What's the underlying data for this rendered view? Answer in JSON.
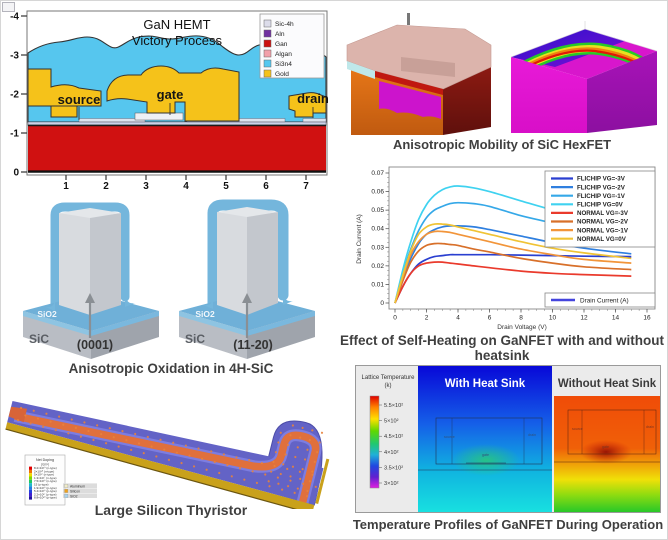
{
  "page": {
    "background": "#ffffff"
  },
  "panels": {
    "gan_hemt": {
      "title_line1": "GaN HEMT",
      "title_line2": "Victory Process",
      "labels": {
        "source": "source",
        "gate": "gate",
        "drain": "drain"
      },
      "y_ticks": [
        "-4",
        "-3",
        "-2",
        "-1",
        "0"
      ],
      "x_ticks": [
        "1",
        "2",
        "3",
        "4",
        "5",
        "6",
        "7"
      ],
      "legend": [
        {
          "label": "Sic-4h",
          "color": "#dcdcea"
        },
        {
          "label": "Aln",
          "color": "#7030a0"
        },
        {
          "label": "Gan",
          "color": "#cc1111"
        },
        {
          "label": "Algan",
          "color": "#f2a0aa"
        },
        {
          "label": "Si3n4",
          "color": "#55c8f0"
        },
        {
          "label": "Gold",
          "color": "#f5c21a"
        }
      ],
      "material_colors": {
        "gan_red": "#d01111",
        "nitride_cyan": "#56c6ee",
        "gold": "#f5c21a",
        "substrate_strip": "#ccd2e8"
      }
    },
    "hexfet": {
      "caption": "Anisotropic Mobility of SiC HexFET"
    },
    "self_heating": {
      "caption": "Effect of Self-Heating on GaNFET with and without heatsink"
    },
    "oxidation": {
      "caption": "Anisotropic Oxidation in 4H-SiC",
      "left": {
        "sio2": "SiO2",
        "sic": "SiC",
        "orientation": "(0001)"
      },
      "right": {
        "sio2": "SiO2",
        "sic": "SiC",
        "orientation": "(11-20)"
      }
    },
    "thyristor": {
      "caption": "Large Silicon Thyristor",
      "doping_legend": {
        "title": "Net Doping",
        "unit": "(/cm³)",
        "rows": [
          "8.2×10¹⁹ (n-type)",
          "2×10¹⁸ (n-type)",
          "5×10¹⁷ (n-type)",
          "1.3×10¹⁷ (n-type)",
          "7.5×10¹⁶ (n-type)",
          "15 (p-type)",
          "1.9×10¹⁶ (p-type)",
          "5.4×10¹⁶ (p-type)",
          "2.2×10¹⁷ (p-type)",
          "8.8×10¹⁸ (p-type)"
        ]
      },
      "materials": [
        {
          "label": "Aluminum",
          "color": "#f0ecc8"
        },
        {
          "label": "Silicon",
          "color": "#eda21d"
        },
        {
          "label": "SiO2",
          "color": "#a6d3ee"
        }
      ]
    },
    "temperature": {
      "caption": "Temperature Profiles of GaNFET During Operation",
      "left_title": "With Heat Sink",
      "right_title": "Without Heat Sink",
      "colorbar_title": "Lattice Temperature",
      "colorbar_unit": "(k)",
      "colorbar_ticks": [
        "5.5×10²",
        "5×10²",
        "4.5×10²",
        "4×10²",
        "3.5×10²",
        "3×10²"
      ],
      "annotations": {
        "source": "source",
        "gate": "gate",
        "drain": "drain"
      }
    }
  },
  "chart_data": {
    "type": "line",
    "title": "",
    "xlabel": "Drain Voltage (V)",
    "ylabel": "Drain Current (A)",
    "xlim": [
      0,
      16
    ],
    "ylim": [
      0,
      0.07
    ],
    "x_ticks": [
      0,
      2,
      4,
      6,
      8,
      10,
      12,
      14,
      16
    ],
    "y_ticks": [
      0,
      0.01,
      0.02,
      0.03,
      0.04,
      0.05,
      0.06,
      0.07
    ],
    "grid": false,
    "legend_position": "top-right",
    "x": [
      0,
      0.5,
      1,
      1.5,
      2,
      2.5,
      3,
      3.5,
      4,
      5,
      6,
      8,
      10,
      12,
      15
    ],
    "series": [
      {
        "name": "FLICHIP VG=-3V",
        "color": "#2a3fd0",
        "values": [
          0,
          0.009,
          0.016,
          0.021,
          0.0235,
          0.025,
          0.0255,
          0.026,
          0.026,
          0.026,
          0.026,
          0.0258,
          0.0255,
          0.0252,
          0.025
        ]
      },
      {
        "name": "FLICHIP VG=-2V",
        "color": "#2f7fdf",
        "values": [
          0,
          0.013,
          0.024,
          0.032,
          0.037,
          0.0395,
          0.041,
          0.0415,
          0.0415,
          0.041,
          0.0395,
          0.036,
          0.0325,
          0.0295,
          0.0265
        ]
      },
      {
        "name": "FLICHIP VG=-1V",
        "color": "#35a8e8",
        "values": [
          0,
          0.016,
          0.029,
          0.039,
          0.046,
          0.05,
          0.052,
          0.0535,
          0.054,
          0.0535,
          0.052,
          0.047,
          0.043,
          0.0385,
          0.032
        ]
      },
      {
        "name": "FLICHIP VG=0V",
        "color": "#3fd2f0",
        "values": [
          0,
          0.018,
          0.033,
          0.045,
          0.053,
          0.058,
          0.061,
          0.0625,
          0.063,
          0.062,
          0.06,
          0.055,
          0.05,
          0.0455,
          0.039
        ]
      },
      {
        "name": "NORMAL VG=-3V",
        "color": "#ea3a2c",
        "values": [
          0,
          0.009,
          0.016,
          0.02,
          0.0215,
          0.022,
          0.022,
          0.0215,
          0.021,
          0.02,
          0.019,
          0.0172,
          0.016,
          0.0153,
          0.0145
        ]
      },
      {
        "name": "NORMAL VG=-2V",
        "color": "#d8702a",
        "values": [
          0,
          0.012,
          0.022,
          0.028,
          0.031,
          0.032,
          0.032,
          0.0315,
          0.031,
          0.029,
          0.0275,
          0.024,
          0.0215,
          0.0195,
          0.018
        ]
      },
      {
        "name": "NORMAL VG=-1V",
        "color": "#f2953a",
        "values": [
          0,
          0.014,
          0.026,
          0.033,
          0.037,
          0.0385,
          0.0385,
          0.038,
          0.037,
          0.035,
          0.033,
          0.029,
          0.026,
          0.0235,
          0.0215
        ]
      },
      {
        "name": "NORMAL VG=0V",
        "color": "#f0c335",
        "values": [
          0,
          0.015,
          0.028,
          0.037,
          0.041,
          0.0425,
          0.0425,
          0.042,
          0.041,
          0.039,
          0.037,
          0.033,
          0.0295,
          0.027,
          0.024
        ]
      }
    ],
    "extra_legend": {
      "label": "Drain Current (A)",
      "color": "#4444dd"
    }
  }
}
